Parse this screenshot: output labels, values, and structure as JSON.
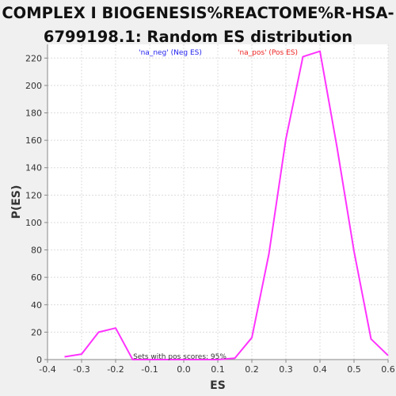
{
  "chart_data": {
    "type": "line",
    "title_lines": [
      "COMPLEX I BIOGENESIS%REACTOME%R-HSA-",
      "6799198.1: Random ES distribution"
    ],
    "xlabel": "ES",
    "ylabel": "P(ES)",
    "xlim": [
      -0.4,
      0.6
    ],
    "ylim": [
      0,
      230
    ],
    "xticks": [
      -0.4,
      -0.3,
      -0.2,
      -0.1,
      0.0,
      0.1,
      0.2,
      0.3,
      0.4,
      0.5,
      0.6
    ],
    "xtick_labels": [
      "-0.4",
      "-0.3",
      "-0.2",
      "-0.1",
      "0.0",
      "0.1",
      "0.2",
      "0.3",
      "0.4",
      "0.5",
      "0.6"
    ],
    "yticks": [
      0,
      20,
      40,
      60,
      80,
      100,
      120,
      140,
      160,
      180,
      200,
      220
    ],
    "grid": true,
    "legend": [
      {
        "label": "'na_neg' (Neg ES)",
        "color": "#2222ee"
      },
      {
        "label": "'na_pos' (Pos ES)",
        "color": "#ee2222"
      }
    ],
    "annotation": "Sets with pos scores: 95%",
    "series": [
      {
        "color": "#ff33ff",
        "x": [
          -0.35,
          -0.3,
          -0.25,
          -0.2,
          -0.15,
          -0.1,
          -0.05,
          0.0,
          0.05,
          0.1,
          0.15,
          0.2,
          0.25,
          0.3,
          0.35,
          0.4,
          0.45,
          0.5,
          0.55,
          0.6
        ],
        "y": [
          2,
          4,
          20,
          23,
          0,
          0,
          0,
          0,
          0,
          0,
          1,
          16,
          77,
          161,
          221,
          225,
          155,
          79,
          15,
          3
        ]
      }
    ]
  }
}
